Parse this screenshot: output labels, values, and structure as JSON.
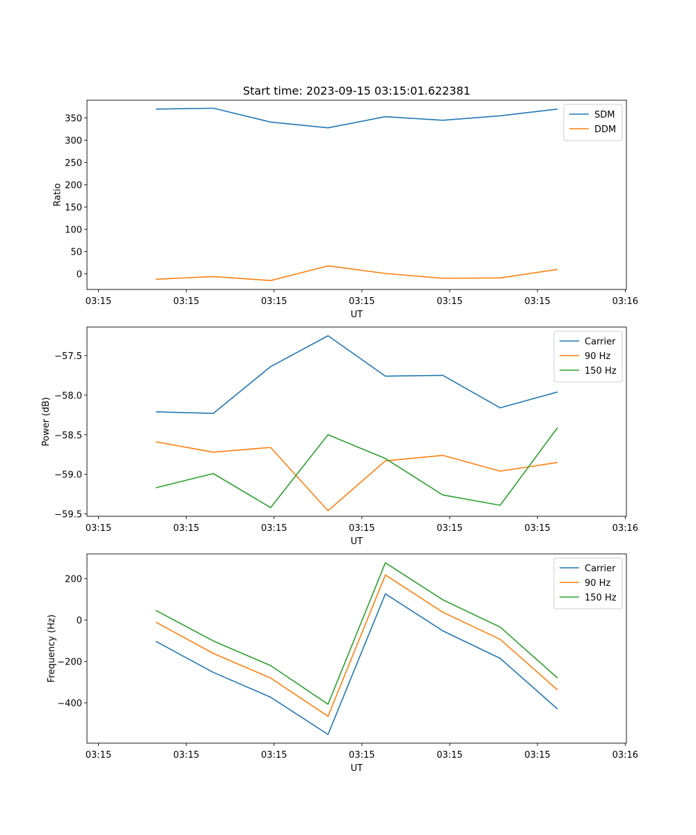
{
  "chart_data": [
    {
      "type": "line",
      "title": "Start time: 2023-09-15 03:15:01.622381",
      "xlabel": "UT",
      "ylabel": "Ratio",
      "x": [
        1,
        2,
        3,
        4,
        5,
        6,
        7,
        8
      ],
      "xlim": [
        -0.2,
        9.2
      ],
      "x_ticks": [
        0,
        1.53,
        3.06,
        4.59,
        6.12,
        7.65,
        9.18
      ],
      "x_tick_labels": [
        "03:15",
        "03:15",
        "03:15",
        "03:15",
        "03:15",
        "03:15",
        "03:16"
      ],
      "ylim": [
        -35,
        390
      ],
      "y_ticks": [
        0,
        50,
        100,
        150,
        200,
        250,
        300,
        350
      ],
      "y_tick_labels": [
        "0",
        "50",
        "100",
        "150",
        "200",
        "250",
        "300",
        "350"
      ],
      "legend_position": "top-right",
      "series": [
        {
          "name": "SDM",
          "color": "#1f77b4",
          "values": [
            370,
            372,
            341,
            328,
            353,
            345,
            355,
            370
          ]
        },
        {
          "name": "DDM",
          "color": "#ff7f0e",
          "values": [
            -12,
            -6,
            -15,
            18,
            1,
            -10,
            -9,
            10
          ]
        }
      ]
    },
    {
      "type": "line",
      "title": "",
      "xlabel": "UT",
      "ylabel": "Power (dB)",
      "x": [
        1,
        2,
        3,
        4,
        5,
        6,
        7,
        8
      ],
      "xlim": [
        -0.2,
        9.2
      ],
      "x_ticks": [
        0,
        1.53,
        3.06,
        4.59,
        6.12,
        7.65,
        9.18
      ],
      "x_tick_labels": [
        "03:15",
        "03:15",
        "03:15",
        "03:15",
        "03:15",
        "03:15",
        "03:16"
      ],
      "ylim": [
        -59.53,
        -57.14
      ],
      "y_ticks": [
        -59.5,
        -59.0,
        -58.5,
        -58.0,
        -57.5
      ],
      "y_tick_labels": [
        "−59.5",
        "−59.0",
        "−58.5",
        "−58.0",
        "−57.5"
      ],
      "legend_position": "top-right",
      "series": [
        {
          "name": "Carrier",
          "color": "#1f77b4",
          "values": [
            -58.21,
            -58.23,
            -57.64,
            -57.25,
            -57.76,
            -57.75,
            -58.16,
            -57.96
          ]
        },
        {
          "name": "90 Hz",
          "color": "#ff7f0e",
          "values": [
            -58.59,
            -58.72,
            -58.66,
            -59.46,
            -58.83,
            -58.76,
            -58.96,
            -58.85
          ]
        },
        {
          "name": "150 Hz",
          "color": "#2ca02c",
          "values": [
            -59.17,
            -58.99,
            -59.42,
            -58.5,
            -58.8,
            -59.26,
            -59.39,
            -58.41
          ]
        }
      ]
    },
    {
      "type": "line",
      "title": "",
      "xlabel": "UT",
      "ylabel": "Frequency (Hz)",
      "x": [
        1,
        2,
        3,
        4,
        5,
        6,
        7,
        8
      ],
      "xlim": [
        -0.2,
        9.2
      ],
      "x_ticks": [
        0,
        1.53,
        3.06,
        4.59,
        6.12,
        7.65,
        9.18
      ],
      "x_tick_labels": [
        "03:15",
        "03:15",
        "03:15",
        "03:15",
        "03:15",
        "03:15",
        "03:16"
      ],
      "ylim": [
        -595,
        320
      ],
      "y_ticks": [
        -400,
        -200,
        0,
        200
      ],
      "y_tick_labels": [
        "−400",
        "−200",
        "0",
        "200"
      ],
      "legend_position": "top-right",
      "series": [
        {
          "name": "Carrier",
          "color": "#1f77b4",
          "values": [
            -103,
            -253,
            -373,
            -553,
            127,
            -52,
            -185,
            -430
          ]
        },
        {
          "name": "90 Hz",
          "color": "#ff7f0e",
          "values": [
            -10,
            -161,
            -280,
            -465,
            218,
            38,
            -93,
            -338
          ]
        },
        {
          "name": "150 Hz",
          "color": "#2ca02c",
          "values": [
            47,
            -101,
            -220,
            -407,
            277,
            98,
            -34,
            -280
          ]
        }
      ]
    }
  ]
}
